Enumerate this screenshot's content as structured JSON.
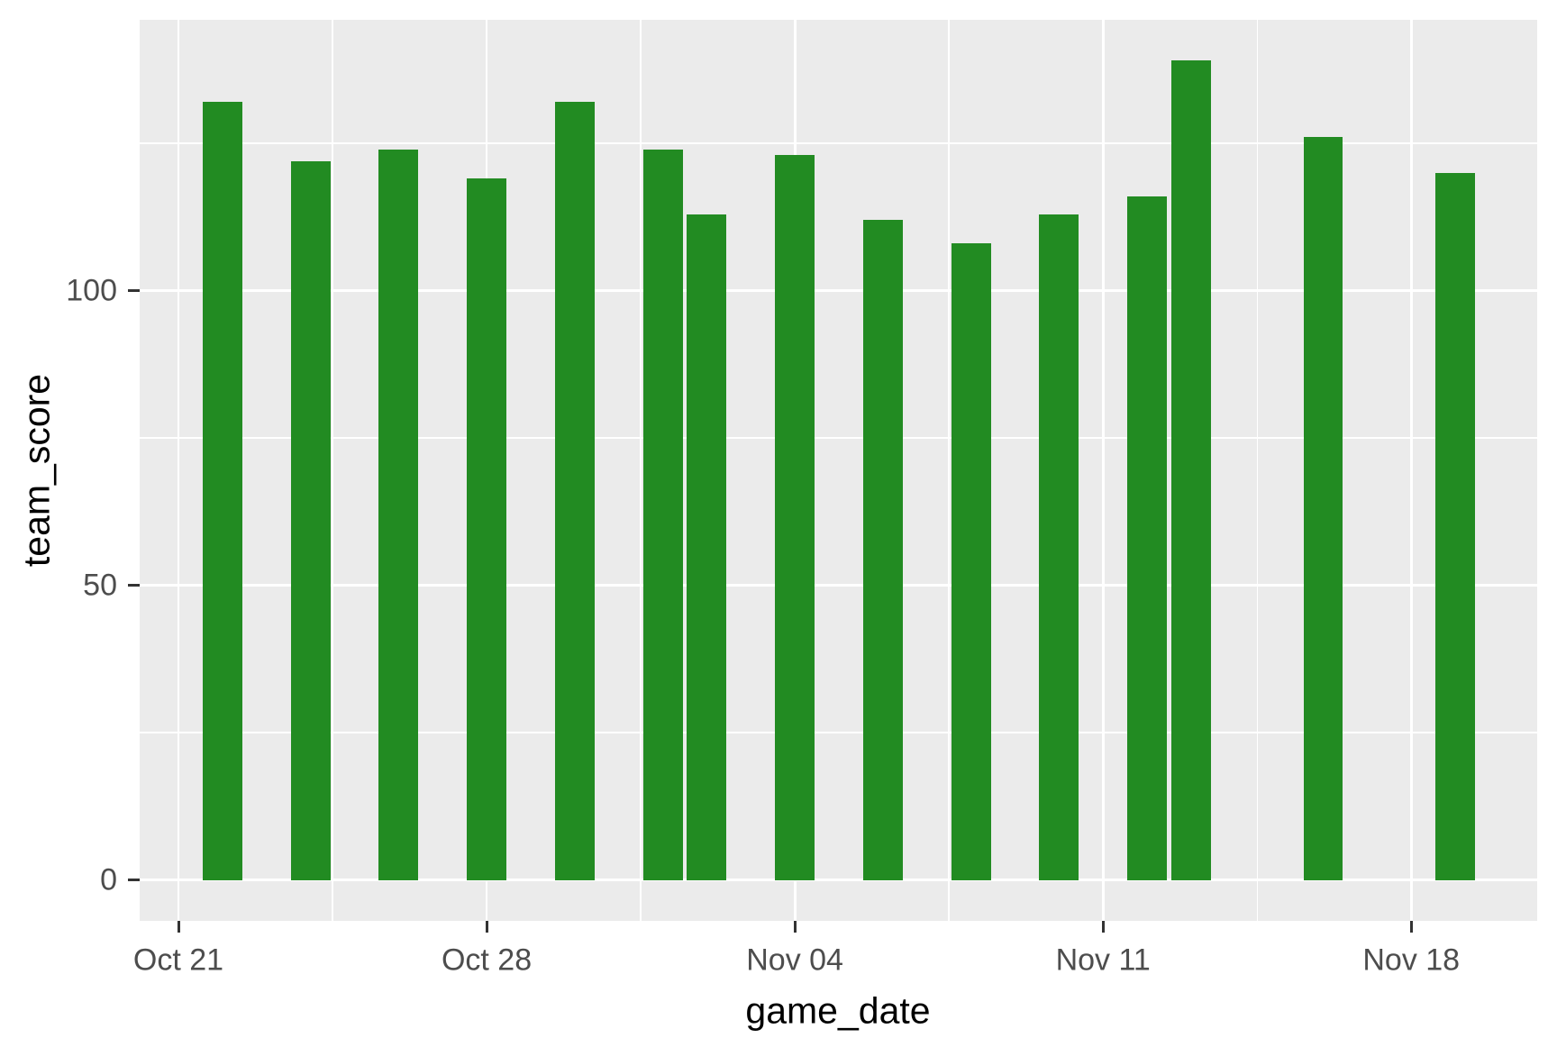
{
  "chart_data": {
    "type": "bar",
    "title": "",
    "xlabel": "game_date",
    "ylabel": "team_score",
    "categories": [
      "Oct 22",
      "Oct 24",
      "Oct 26",
      "Oct 28",
      "Oct 30",
      "Nov 01",
      "Nov 02",
      "Nov 04",
      "Nov 06",
      "Nov 08",
      "Nov 10",
      "Nov 12",
      "Nov 13",
      "Nov 16",
      "Nov 19"
    ],
    "values": [
      132,
      122,
      124,
      119,
      132,
      124,
      113,
      123,
      112,
      108,
      113,
      116,
      139,
      126,
      120
    ],
    "bars": [
      {
        "date": "Oct 22",
        "day": 1,
        "value": 132
      },
      {
        "date": "Oct 24",
        "day": 3,
        "value": 122
      },
      {
        "date": "Oct 26",
        "day": 5,
        "value": 124
      },
      {
        "date": "Oct 28",
        "day": 7,
        "value": 119
      },
      {
        "date": "Oct 30",
        "day": 9,
        "value": 132
      },
      {
        "date": "Nov 01",
        "day": 11,
        "value": 124
      },
      {
        "date": "Nov 02",
        "day": 12,
        "value": 113
      },
      {
        "date": "Nov 04",
        "day": 14,
        "value": 123
      },
      {
        "date": "Nov 06",
        "day": 16,
        "value": 112
      },
      {
        "date": "Nov 08",
        "day": 18,
        "value": 108
      },
      {
        "date": "Nov 10",
        "day": 20,
        "value": 113
      },
      {
        "date": "Nov 12",
        "day": 22,
        "value": 116
      },
      {
        "date": "Nov 13",
        "day": 23,
        "value": 139
      },
      {
        "date": "Nov 16",
        "day": 26,
        "value": 126
      },
      {
        "date": "Nov 19",
        "day": 29,
        "value": 120
      }
    ],
    "x_ticks": [
      {
        "day": 0,
        "label": "Oct 21"
      },
      {
        "day": 7,
        "label": "Oct 28"
      },
      {
        "day": 14,
        "label": "Nov 04"
      },
      {
        "day": 21,
        "label": "Nov 11"
      },
      {
        "day": 28,
        "label": "Nov 18"
      }
    ],
    "x_minor_days": [
      3.5,
      10.5,
      17.5,
      24.5
    ],
    "y_ticks": [
      {
        "value": 0,
        "label": "0"
      },
      {
        "value": 50,
        "label": "50"
      },
      {
        "value": 100,
        "label": "100"
      }
    ],
    "y_minor_values": [
      25,
      75,
      125
    ],
    "xlim_days": [
      -0.88,
      30.86
    ],
    "ylim": [
      -6.95,
      145.95
    ],
    "bar_width_days": 0.9,
    "grid": true,
    "legend_position": "none"
  },
  "style": {
    "bar_color": "#228B22",
    "panel_bg": "#EBEBEB",
    "grid_color": "#FFFFFF",
    "tick_mark_color": "#333333",
    "tick_label_color": "#4D4D4D",
    "axis_title_color": "#000000",
    "page_bg": "#FFFFFF"
  }
}
